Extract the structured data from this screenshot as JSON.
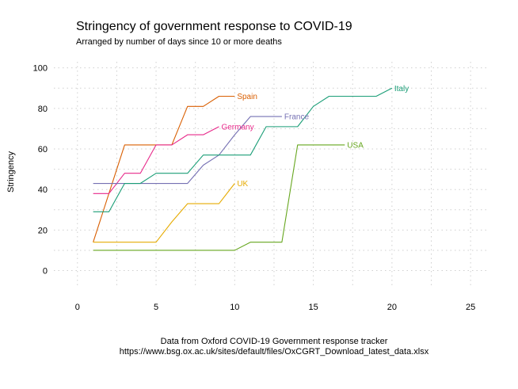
{
  "chart_data": {
    "type": "line",
    "title": "Stringency of government response to COVID-19",
    "subtitle": "Arranged by number of days since 10 or more deaths",
    "xlabel": "",
    "ylabel": "Stringency",
    "caption_line1": "Data from Oxford COVID-19 Government response tracker",
    "caption_line2": "https://www.bsg.ox.ac.uk/sites/default/files/OxCGRT_Download_latest_data.xlsx",
    "xlim": [
      -1.5,
      26
    ],
    "ylim": [
      -8,
      103
    ],
    "x_ticks": [
      0,
      5,
      10,
      15,
      20,
      25
    ],
    "y_ticks": [
      0,
      20,
      40,
      60,
      80,
      100
    ],
    "grid": true,
    "legend": "direct labels at line ends",
    "series": [
      {
        "name": "Spain",
        "color": "#d95f02",
        "step": true,
        "x": [
          1,
          2,
          3,
          4,
          5,
          6,
          7,
          8,
          9,
          10
        ],
        "y": [
          14,
          38,
          62,
          62,
          62,
          62,
          81,
          81,
          86,
          86
        ]
      },
      {
        "name": "Germany",
        "color": "#e7298a",
        "step": true,
        "x": [
          1,
          2,
          3,
          4,
          5,
          6,
          7,
          8,
          9
        ],
        "y": [
          38,
          38,
          48,
          48,
          62,
          62,
          67,
          67,
          71
        ]
      },
      {
        "name": "France",
        "color": "#7570b3",
        "step": true,
        "x": [
          1,
          2,
          3,
          4,
          5,
          6,
          7,
          8,
          9,
          10,
          11,
          12,
          13
        ],
        "y": [
          43,
          43,
          43,
          43,
          43,
          43,
          43,
          52,
          57,
          67,
          76,
          76,
          76
        ]
      },
      {
        "name": "Italy",
        "color": "#1b9e77",
        "step": true,
        "x": [
          1,
          2,
          3,
          4,
          5,
          6,
          7,
          8,
          9,
          10,
          11,
          12,
          13,
          14,
          15,
          16,
          17,
          18,
          19,
          20
        ],
        "y": [
          29,
          29,
          43,
          43,
          48,
          48,
          48,
          57,
          57,
          57,
          57,
          71,
          71,
          71,
          81,
          86,
          86,
          86,
          86,
          90
        ]
      },
      {
        "name": "UK",
        "color": "#e6ab02",
        "step": true,
        "x": [
          1,
          2,
          3,
          4,
          5,
          6,
          7,
          8,
          9,
          10
        ],
        "y": [
          14,
          14,
          14,
          14,
          14,
          24,
          33,
          33,
          33,
          43
        ]
      },
      {
        "name": "USA",
        "color": "#66a61e",
        "step": true,
        "x": [
          1,
          2,
          3,
          4,
          5,
          6,
          7,
          8,
          9,
          10,
          11,
          12,
          13,
          14,
          15,
          16,
          17
        ],
        "y": [
          10,
          10,
          10,
          10,
          10,
          10,
          10,
          10,
          10,
          10,
          14,
          14,
          14,
          62,
          62,
          62,
          62
        ]
      }
    ]
  }
}
